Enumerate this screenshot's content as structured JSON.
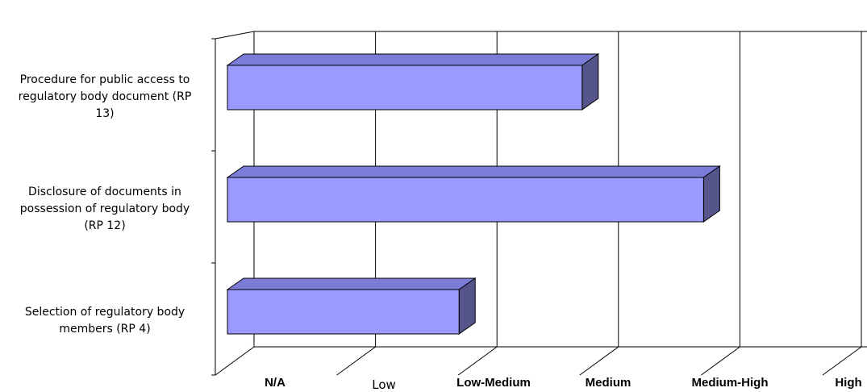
{
  "chart_data": {
    "type": "bar",
    "orientation": "horizontal",
    "three_d": true,
    "categories": [
      "Procedure for public access to\nregulatory body document (RP\n13)",
      "Disclosure of documents in\npossession of regulatory body\n(RP 12)",
      "Selection of regulatory body\nmembers (RP 4)"
    ],
    "values": [
      3,
      4,
      2
    ],
    "x_ticks": [
      "N/A",
      "Low",
      "Low-Medium",
      "Medium",
      "Medium-High",
      "High"
    ],
    "xlim": [
      0,
      5
    ],
    "grid": true,
    "bar_color": "#9999ff",
    "bar_top_color": "#7b7bd8",
    "bar_side_color": "#55558c"
  }
}
